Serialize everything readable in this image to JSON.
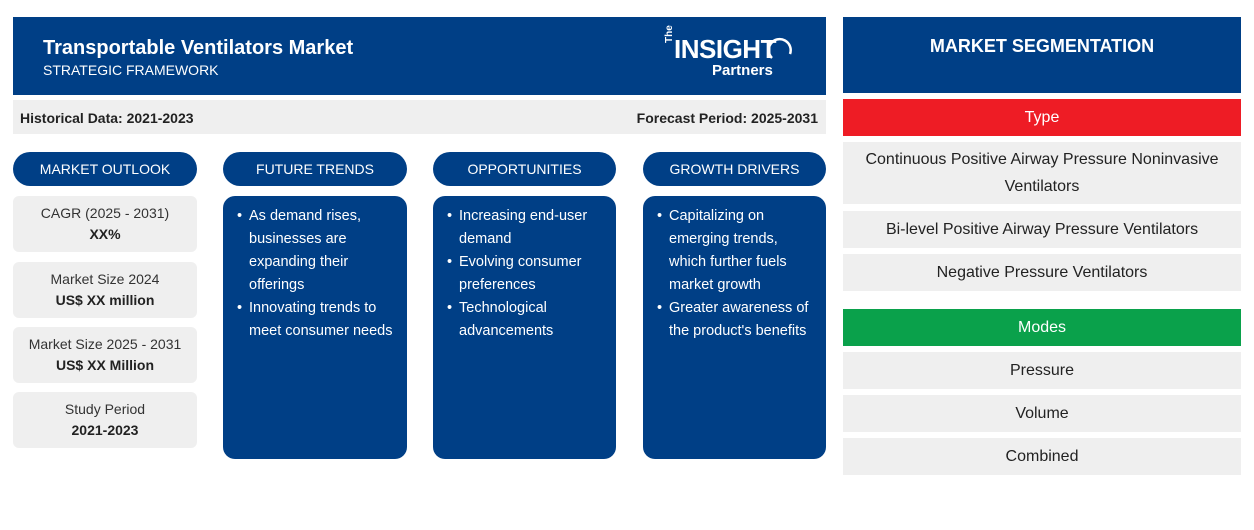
{
  "header": {
    "title": "Transportable Ventilators Market",
    "subtitle": "STRATEGIC FRAMEWORK",
    "logo": {
      "the": "The",
      "insight": "INSIGHT",
      "partners": "Partners"
    }
  },
  "infobar": {
    "historical": "Historical Data: 2021-2023",
    "forecast": "Forecast Period: 2025-2031"
  },
  "columns": {
    "outlook": "MARKET OUTLOOK",
    "trends": "FUTURE TRENDS",
    "opportunities": "OPPORTUNITIES",
    "drivers": "GROWTH DRIVERS"
  },
  "outlook": [
    {
      "label": "CAGR (2025 - 2031)",
      "value": "XX%"
    },
    {
      "label": "Market Size 2024",
      "value": "US$ XX million"
    },
    {
      "label": "Market Size 2025 - 2031",
      "value": "US$ XX Million"
    },
    {
      "label": "Study Period",
      "value": "2021-2023"
    }
  ],
  "trends": [
    "As demand rises, businesses are expanding their offerings",
    "Innovating trends to meet consumer needs"
  ],
  "opportunities": [
    "Increasing end-user demand",
    "Evolving consumer preferences",
    "Technological advancements"
  ],
  "drivers": [
    "Capitalizing on emerging trends, which further fuels market growth",
    "Greater awareness of the product's benefits"
  ],
  "segmentation": {
    "title": "MARKET SEGMENTATION",
    "type": {
      "label": "Type",
      "color": "#ee1c25",
      "items": [
        "Continuous Positive Airway Pressure Noninvasive Ventilators",
        "Bi-level Positive Airway Pressure Ventilators",
        "Negative Pressure Ventilators"
      ]
    },
    "modes": {
      "label": "Modes",
      "color": "#0aa14b",
      "items": [
        "Pressure",
        "Volume",
        "Combined"
      ]
    }
  },
  "colors": {
    "primary": "#003f86",
    "box": "#efefef"
  }
}
